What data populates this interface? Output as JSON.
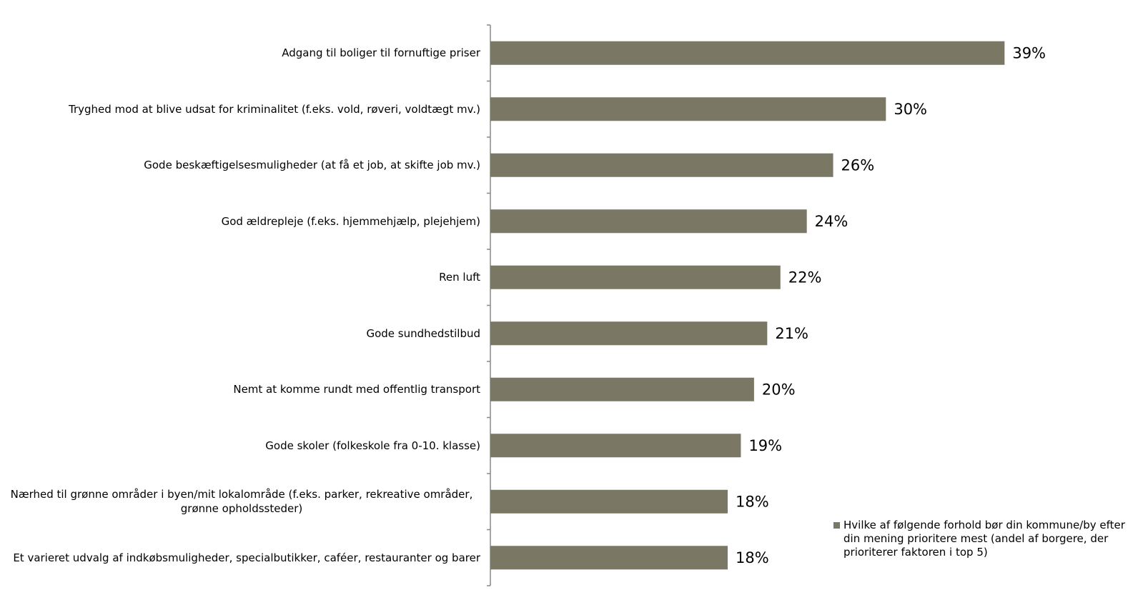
{
  "chart_data": {
    "type": "hbar",
    "categories": [
      "Adgang til boliger til fornuftige priser",
      "Tryghed mod at blive udsat for kriminalitet (f.eks. vold, røveri, voldtægt mv.)",
      "Gode beskæftigelsesmuligheder (at få et job, at skifte job mv.)",
      "God ældrepleje (f.eks. hjemmehjælp, plejehjem)",
      "Ren luft",
      "Gode sundhedstilbud",
      "Nemt at komme rundt med offentlig transport",
      "Gode skoler (folkeskole fra 0-10. klasse)",
      "Nærhed til grønne områder i byen/mit lokalområde (f.eks. parker, rekreative områder, grønne opholdssteder)",
      "Et varieret udvalg af indkøbsmuligheder, specialbutikker, caféer, restauranter og barer"
    ],
    "series": [
      {
        "name": "Hvilke af følgende forhold bør din kommune/by efter din mening prioritere mest (andel af borgere, der prioriterer faktoren i top 5)",
        "color": "#7a7764",
        "values": [
          39,
          30,
          26,
          24,
          22,
          21,
          20,
          19,
          18,
          18
        ],
        "value_labels": [
          "39%",
          "30%",
          "26%",
          "24%",
          "22%",
          "21%",
          "20%",
          "19%",
          "18%",
          "18%"
        ]
      }
    ],
    "xlim": [
      0,
      45
    ],
    "legend": "right"
  }
}
